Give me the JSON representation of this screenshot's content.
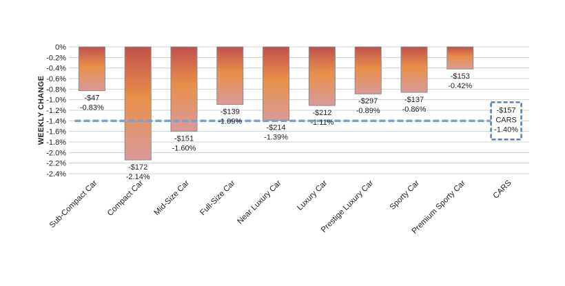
{
  "chart_data": {
    "type": "bar",
    "title": "",
    "xlabel": "",
    "ylabel": "WEEKLY CHANGE",
    "ylim": [
      -2.4,
      0
    ],
    "y_ticks": [
      "0%",
      "-0.2%",
      "-0.4%",
      "-0.6%",
      "-0.8%",
      "-1.0%",
      "-1.2%",
      "-1.4%",
      "-1.6%",
      "-1.8%",
      "-2.0%",
      "-2.2%",
      "-2.4%"
    ],
    "grid": true,
    "categories": [
      "Sub-Compact Car",
      "Compact Car",
      "Mid-Size Car",
      "Full-Size Car",
      "Near Luxury Car",
      "Luxury Car",
      "Prestige Luxury Car",
      "Sporty Car",
      "Premium Sporty Car",
      "CARS"
    ],
    "values": [
      -0.83,
      -2.14,
      -1.6,
      -1.09,
      -1.39,
      -1.11,
      -0.89,
      -0.86,
      -0.42,
      null
    ],
    "dollar_labels": [
      "-$47",
      "-$172",
      "-$151",
      "-$139",
      "-$214",
      "-$212",
      "-$297",
      "-$137",
      "-$153",
      ""
    ],
    "percent_labels": [
      "-0.83%",
      "-2.14%",
      "-1.60%",
      "-1.09%",
      "-1.39%",
      "-1.11%",
      "-0.89%",
      "-0.86%",
      "-0.42%",
      ""
    ],
    "reference_line": {
      "value": -1.4,
      "dollar_label": "-$157",
      "name_label": "CARS",
      "percent_label": "-1.40%"
    },
    "colors": {
      "bar_top": "#c0504d",
      "bar_mid": "#e8904a",
      "bar_bottom": "#d99a9a",
      "bar_border": "#8a8a8a",
      "reference_line": "#7f9fc8",
      "reference_box": "#4f7fbf",
      "grid": "#d0d0d0"
    }
  }
}
